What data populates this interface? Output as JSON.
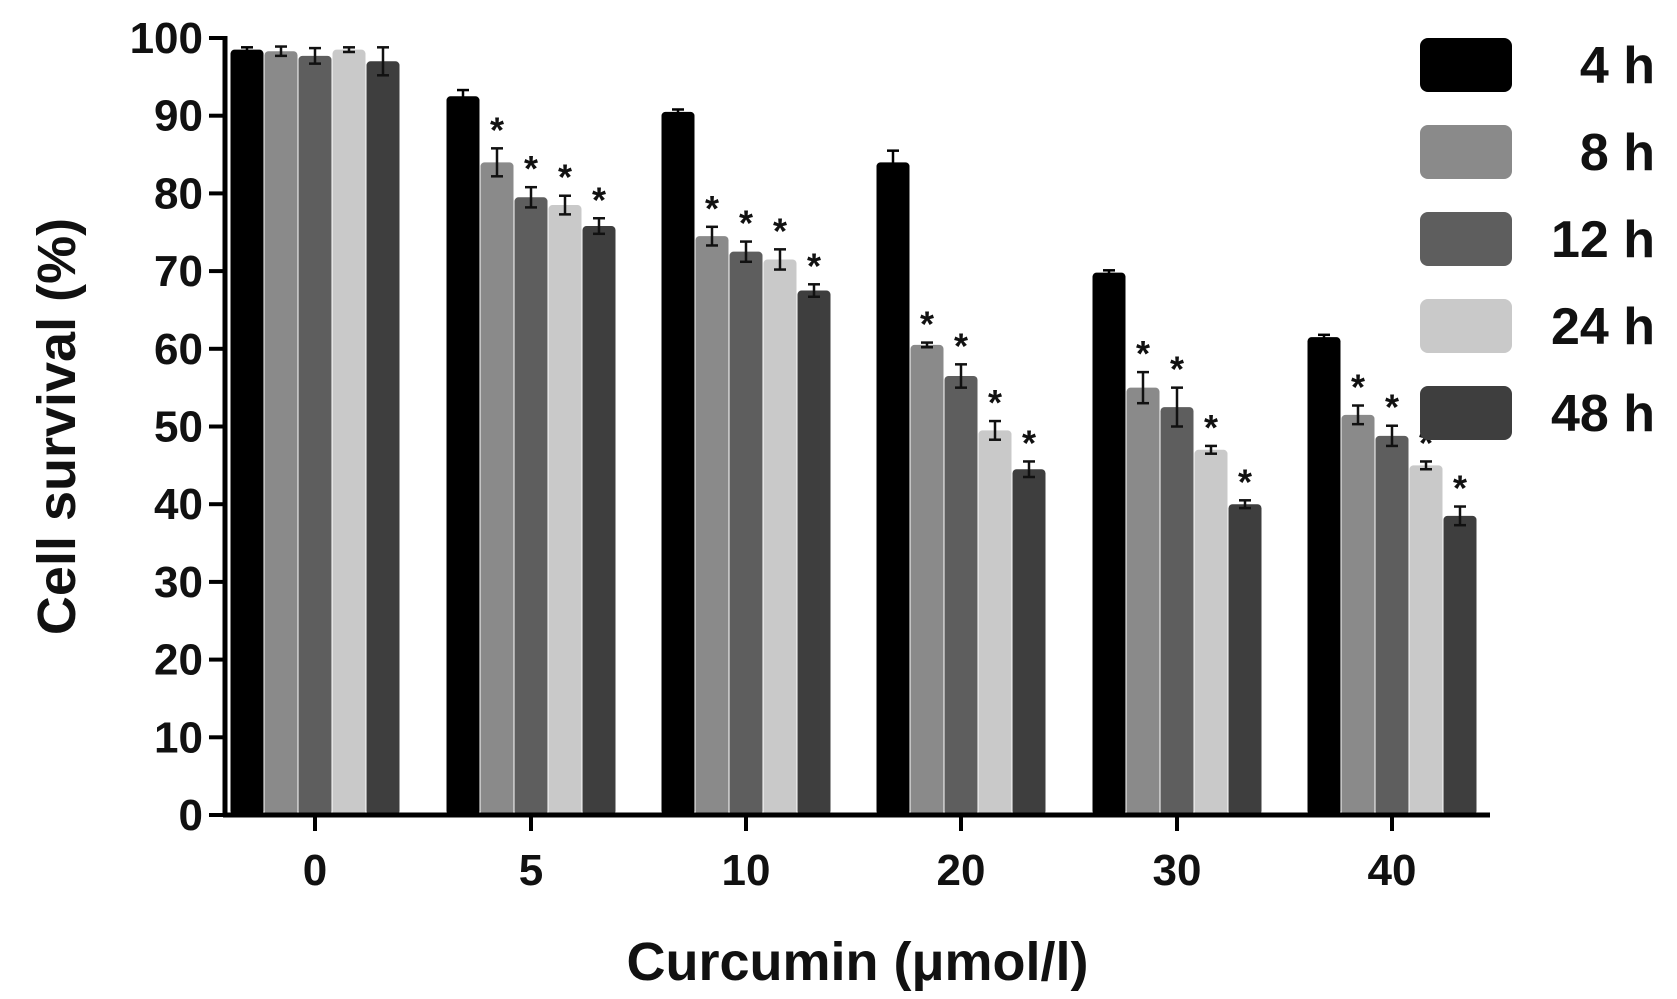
{
  "chart_data": {
    "type": "bar",
    "title": "",
    "xlabel": "Curcumin (μmol/l)",
    "ylabel": "Cell survival (%)",
    "ylim": [
      0,
      100
    ],
    "yticks": [
      0,
      10,
      20,
      30,
      40,
      50,
      60,
      70,
      80,
      90,
      100
    ],
    "categories": [
      "0",
      "5",
      "10",
      "20",
      "30",
      "40"
    ],
    "legend_position": "top-right",
    "grid": false,
    "significance_marker": "*",
    "series": [
      {
        "name": "4 h",
        "color": "#000000",
        "values": [
          98.5,
          92.5,
          90.5,
          84.0,
          69.8,
          61.5
        ],
        "errors": [
          0.3,
          0.8,
          0.3,
          1.5,
          0.3,
          0.3
        ],
        "significant": [
          false,
          false,
          false,
          false,
          false,
          false
        ]
      },
      {
        "name": "8 h",
        "color": "#8a8a8a",
        "values": [
          98.3,
          84.0,
          74.5,
          60.5,
          55.0,
          51.5
        ],
        "errors": [
          0.6,
          1.8,
          1.2,
          0.3,
          2.0,
          1.2
        ],
        "significant": [
          false,
          true,
          true,
          true,
          true,
          true
        ]
      },
      {
        "name": "12 h",
        "color": "#5e5e5e",
        "values": [
          97.7,
          79.5,
          72.5,
          56.5,
          52.5,
          48.8
        ],
        "errors": [
          1.0,
          1.3,
          1.3,
          1.5,
          2.5,
          1.3
        ],
        "significant": [
          false,
          true,
          true,
          true,
          true,
          true
        ]
      },
      {
        "name": "24 h",
        "color": "#c9c9c9",
        "values": [
          98.5,
          78.5,
          71.5,
          49.5,
          47.0,
          45.0
        ],
        "errors": [
          0.3,
          1.2,
          1.3,
          1.2,
          0.5,
          0.5
        ],
        "significant": [
          false,
          true,
          true,
          true,
          true,
          true
        ]
      },
      {
        "name": "48 h",
        "color": "#3e3e3e",
        "values": [
          97.0,
          75.8,
          67.5,
          44.5,
          40.0,
          38.5
        ],
        "errors": [
          1.8,
          1.0,
          0.8,
          1.0,
          0.5,
          1.2
        ],
        "significant": [
          false,
          true,
          true,
          true,
          true,
          true
        ]
      }
    ]
  }
}
